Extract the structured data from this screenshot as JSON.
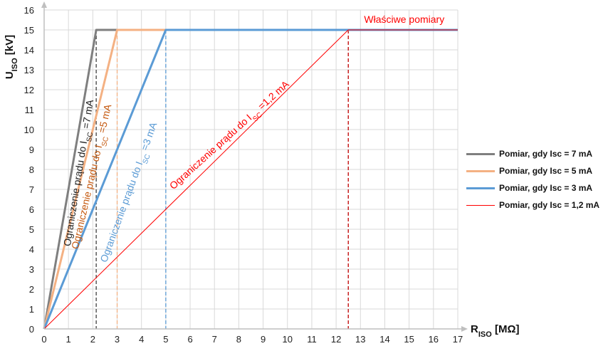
{
  "chart_data": {
    "type": "line",
    "ylabel": "U",
    "ylabel_sub": "ISO",
    "ylabel_unit": " [kV]",
    "xlabel": "R",
    "xlabel_sub": "ISO",
    "xlabel_unit": " [MΩ]",
    "xlim": [
      0,
      17
    ],
    "ylim": [
      0,
      16
    ],
    "xticks": [
      "0",
      "1",
      "2",
      "3",
      "4",
      "5",
      "6",
      "7",
      "8",
      "9",
      "10",
      "11",
      "12",
      "13",
      "14",
      "15",
      "16",
      "17"
    ],
    "yticks": [
      "0",
      "1",
      "2",
      "3",
      "4",
      "5",
      "6",
      "7",
      "8",
      "9",
      "10",
      "11",
      "12",
      "13",
      "14",
      "15",
      "16"
    ],
    "grid": true,
    "legend_position": "right",
    "series": [
      {
        "name": "Pomiar, gdy Isc = 7 mA",
        "color": "#7f7f7f",
        "width": 3,
        "x": [
          0,
          2.14,
          17
        ],
        "y": [
          0,
          15,
          15
        ]
      },
      {
        "name": "Pomiar, gdy Isc = 5 mA",
        "color": "#f4b183",
        "width": 3,
        "x": [
          0,
          3,
          17
        ],
        "y": [
          0,
          15,
          15
        ]
      },
      {
        "name": "Pomiar, gdy Isc = 3 mA",
        "color": "#5b9bd5",
        "width": 3,
        "x": [
          0,
          5,
          17
        ],
        "y": [
          0,
          15,
          15
        ]
      },
      {
        "name": "Pomiar, gdy Isc = 1,2 mA",
        "color": "#ff0000",
        "width": 1,
        "x": [
          0,
          12.5,
          17
        ],
        "y": [
          0,
          15,
          15
        ]
      }
    ],
    "vlines": [
      {
        "x": 2.14,
        "color": "#404040"
      },
      {
        "x": 3,
        "color": "#f4b183"
      },
      {
        "x": 5,
        "color": "#5b9bd5"
      },
      {
        "x": 12.5,
        "color": "#c00000"
      }
    ],
    "annotations": [
      {
        "main": "Ograniczenie prądu do I",
        "sub": "SC",
        "tail": " =7 mA",
        "color": "#222222",
        "x": 1.55,
        "y": 7.8,
        "angle": -81
      },
      {
        "main": "Ograniczenie prądu do I",
        "sub": "SC",
        "tail": " =5 mA",
        "color": "#c55a11",
        "x": 2.08,
        "y": 7.6,
        "angle": -77
      },
      {
        "main": "Ograniczenie prądu do I",
        "sub": "SC",
        "tail": " =3 mA",
        "color": "#5b9bd5",
        "x": 3.6,
        "y": 6.8,
        "angle": -70
      },
      {
        "main": "Ograniczenie prądu do I",
        "sub": "SC",
        "tail": " =1,2 mA",
        "color": "#ff0000",
        "x": 7.7,
        "y": 9.6,
        "angle": -42
      },
      {
        "main": "Właściwe pomiary",
        "sub": "",
        "tail": "",
        "color": "#ff0000",
        "x": 14.8,
        "y": 15.35,
        "angle": 0
      }
    ]
  }
}
